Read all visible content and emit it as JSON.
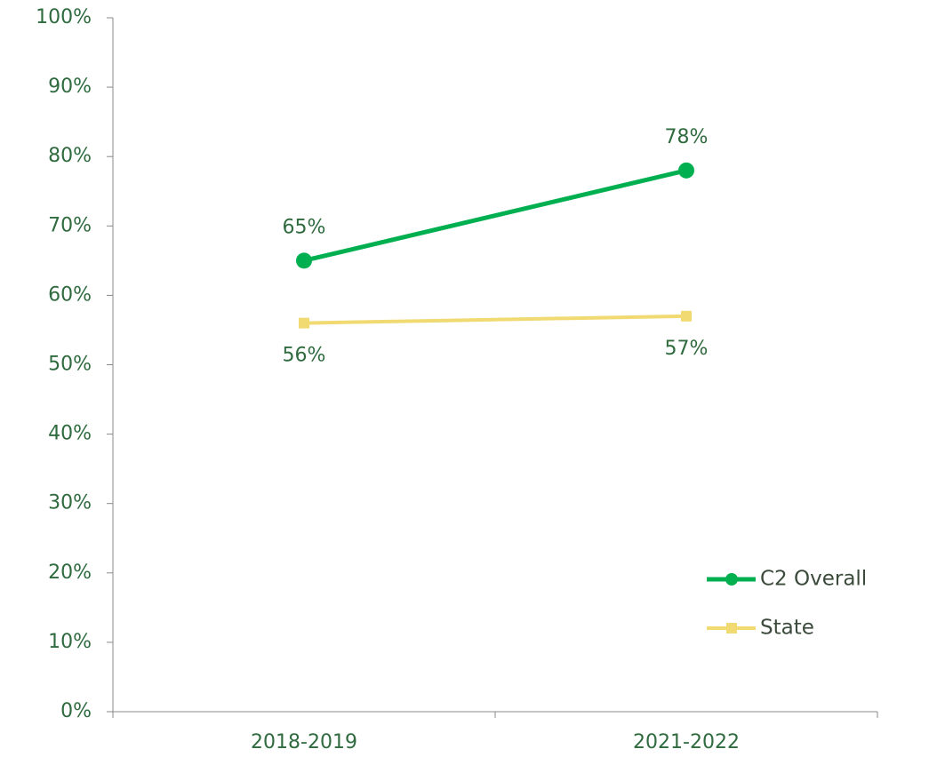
{
  "chart_data": {
    "type": "line",
    "categories": [
      "2018-2019",
      "2021-2022"
    ],
    "series": [
      {
        "name": "C2 Overall",
        "color": "#00b050",
        "marker": "circle",
        "values": [
          65,
          78
        ],
        "value_labels": [
          "65%",
          "78%"
        ]
      },
      {
        "name": "State",
        "color": "#f2da72",
        "marker": "square",
        "values": [
          56,
          57
        ],
        "value_labels": [
          "56%",
          "57%"
        ]
      }
    ],
    "ylim": [
      0,
      100
    ],
    "yticks": [
      {
        "value": 0,
        "label": "0%"
      },
      {
        "value": 10,
        "label": "10%"
      },
      {
        "value": 20,
        "label": "20%"
      },
      {
        "value": 30,
        "label": "30%"
      },
      {
        "value": 40,
        "label": "40%"
      },
      {
        "value": 50,
        "label": "50%"
      },
      {
        "value": 60,
        "label": "60%"
      },
      {
        "value": 70,
        "label": "70%"
      },
      {
        "value": 80,
        "label": "80%"
      },
      {
        "value": 90,
        "label": "90%"
      },
      {
        "value": 100,
        "label": "100%"
      }
    ],
    "grid": false,
    "legend": "lower right"
  }
}
